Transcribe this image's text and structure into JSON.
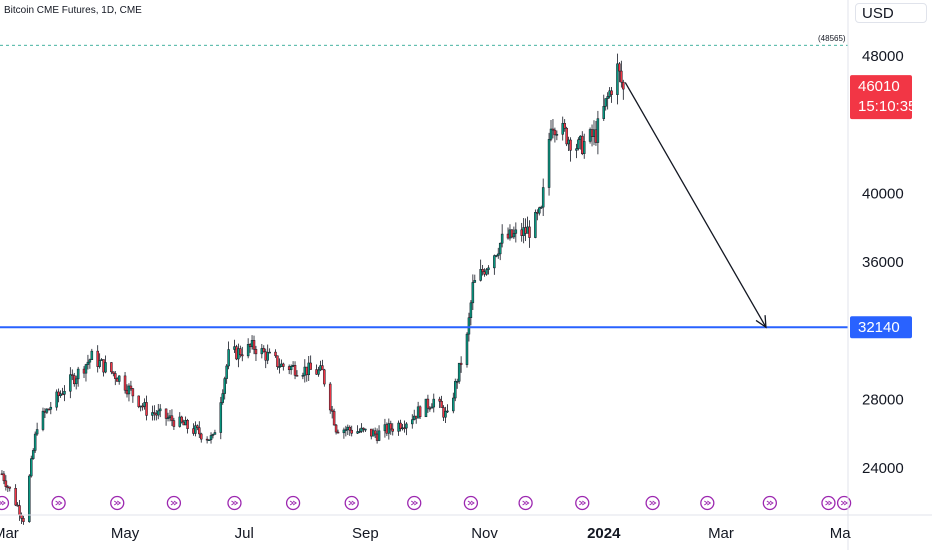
{
  "title": "Bitcoin CME Futures, 1D, CME",
  "currency": "USD",
  "chart_data": {
    "type": "candlestick",
    "title": "Bitcoin CME Futures, 1D, CME",
    "y_ticks": [
      24000,
      28000,
      36000,
      40000,
      48000
    ],
    "y_tick_labels": [
      "24000",
      "28000",
      "36000",
      "40000",
      "48000"
    ],
    "ylim": [
      21200,
      51200
    ],
    "x_labels": [
      "Mar",
      "May",
      "Jul",
      "Sep",
      "Nov",
      "2024",
      "Mar",
      "Ma"
    ],
    "x_label_dates": [
      "2023-03-01",
      "2023-05-01",
      "2023-07-01",
      "2023-09-01",
      "2023-11-01",
      "2024-01-01",
      "2024-03-01",
      "2024-05-01"
    ],
    "x_range": [
      "2023-02-26",
      "2024-05-05"
    ],
    "price_path": [
      {
        "date": "2023-02-27",
        "close": 23600
      },
      {
        "date": "2023-03-10",
        "close": 21000
      },
      {
        "date": "2023-03-17",
        "close": 26500
      },
      {
        "date": "2023-03-31",
        "close": 28600
      },
      {
        "date": "2023-04-14",
        "close": 30400
      },
      {
        "date": "2023-04-28",
        "close": 29200
      },
      {
        "date": "2023-05-12",
        "close": 27300
      },
      {
        "date": "2023-05-26",
        "close": 26700
      },
      {
        "date": "2023-06-15",
        "close": 25600
      },
      {
        "date": "2023-06-23",
        "close": 30500
      },
      {
        "date": "2023-07-06",
        "close": 31000
      },
      {
        "date": "2023-07-20",
        "close": 29900
      },
      {
        "date": "2023-08-10",
        "close": 29500
      },
      {
        "date": "2023-08-17",
        "close": 26300
      },
      {
        "date": "2023-09-07",
        "close": 25900
      },
      {
        "date": "2023-09-22",
        "close": 26700
      },
      {
        "date": "2023-10-06",
        "close": 27900
      },
      {
        "date": "2023-10-13",
        "close": 26900
      },
      {
        "date": "2023-10-23",
        "close": 31500
      },
      {
        "date": "2023-10-26",
        "close": 34500
      },
      {
        "date": "2023-11-10",
        "close": 37200
      },
      {
        "date": "2023-11-24",
        "close": 37800
      },
      {
        "date": "2023-11-30",
        "close": 38800
      },
      {
        "date": "2023-12-05",
        "close": 44200
      },
      {
        "date": "2023-12-19",
        "close": 42600
      },
      {
        "date": "2023-12-28",
        "close": 43400
      },
      {
        "date": "2024-01-08",
        "close": 47200
      },
      {
        "date": "2024-01-11",
        "close": 46010
      }
    ],
    "high_marker": {
      "value": 48565,
      "label": "(48565)"
    },
    "last_price": {
      "value": 46010,
      "label": "46010",
      "countdown": "15:10:35",
      "color": "#f23645"
    },
    "horizontal_line": {
      "value": 32140,
      "label": "32140",
      "color": "#2962ff"
    },
    "arrow": {
      "from": {
        "date": "2024-01-12",
        "value": 46400
      },
      "to": {
        "date": "2024-03-24",
        "value": 32140
      }
    },
    "event_marker_dates": [
      "2023-02-27",
      "2023-03-28",
      "2023-04-27",
      "2023-05-26",
      "2023-06-26",
      "2023-07-26",
      "2023-08-25",
      "2023-09-26",
      "2023-10-25",
      "2023-11-22",
      "2023-12-21",
      "2024-01-26",
      "2024-02-23",
      "2024-03-26",
      "2024-04-25",
      "2024-05-03"
    ],
    "colors": {
      "up": "#089981",
      "down": "#f23645",
      "candle_border": "#131722"
    }
  }
}
